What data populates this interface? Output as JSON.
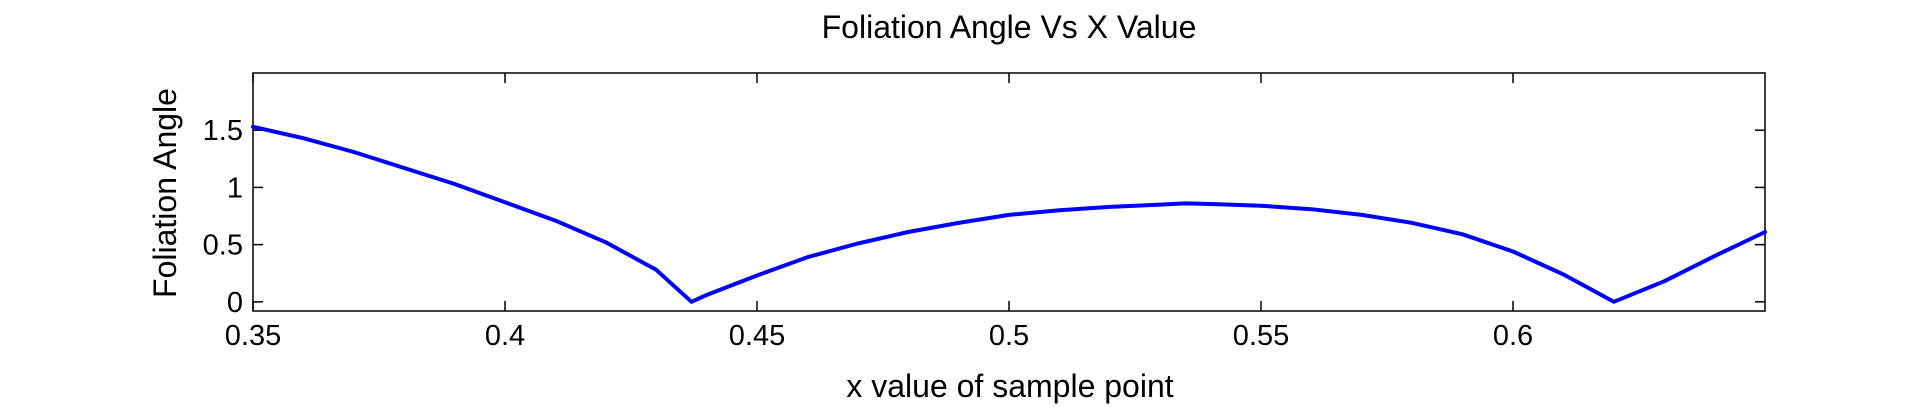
{
  "chart_data": {
    "type": "line",
    "title": "Foliation Angle Vs X Value",
    "xlabel": "x value of sample point",
    "ylabel": "Foliation Angle",
    "xlim": [
      0.35,
      0.65
    ],
    "ylim": [
      -0.08,
      2.0
    ],
    "xticks": [
      0.35,
      0.4,
      0.45,
      0.5,
      0.55,
      0.6
    ],
    "xtick_labels": [
      "0.35",
      "0.4",
      "0.45",
      "0.5",
      "0.55",
      "0.6"
    ],
    "yticks": [
      0,
      0.5,
      1,
      1.5
    ],
    "ytick_labels": [
      "0",
      "0.5",
      "1",
      "1.5"
    ],
    "grid": false,
    "series": [
      {
        "color": "#0000ff",
        "x": [
          0.35,
          0.36,
          0.37,
          0.38,
          0.39,
          0.4,
          0.41,
          0.42,
          0.43,
          0.437,
          0.44,
          0.45,
          0.46,
          0.47,
          0.48,
          0.49,
          0.5,
          0.51,
          0.52,
          0.53,
          0.535,
          0.54,
          0.55,
          0.56,
          0.57,
          0.58,
          0.59,
          0.6,
          0.61,
          0.62,
          0.63,
          0.64,
          0.65
        ],
        "y": [
          1.53,
          1.43,
          1.31,
          1.17,
          1.03,
          0.87,
          0.71,
          0.52,
          0.28,
          0.0,
          0.06,
          0.23,
          0.39,
          0.51,
          0.61,
          0.69,
          0.76,
          0.8,
          0.83,
          0.85,
          0.86,
          0.855,
          0.84,
          0.81,
          0.76,
          0.69,
          0.59,
          0.44,
          0.24,
          0.0,
          0.18,
          0.4,
          0.61
        ]
      }
    ]
  }
}
